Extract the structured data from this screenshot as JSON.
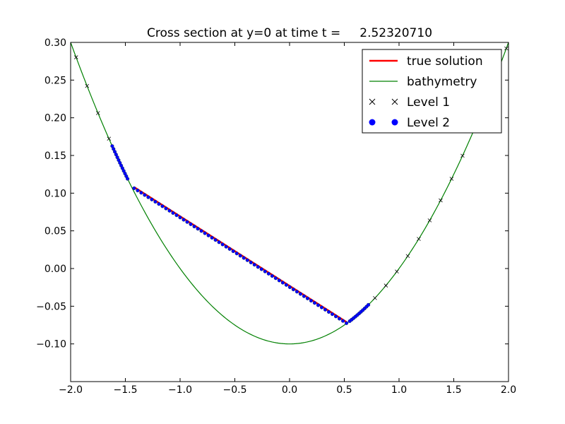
{
  "chart_data": {
    "type": "line",
    "title": "Cross section at y=0 at time t =     2.52320710",
    "xlabel": "",
    "ylabel": "",
    "xlim": [
      -2.0,
      2.0
    ],
    "ylim": [
      -0.15,
      0.3
    ],
    "x_ticks": [
      "−2.0",
      "−1.5",
      "−1.0",
      "−0.5",
      "0.0",
      "0.5",
      "1.0",
      "1.5",
      "2.0"
    ],
    "x_tick_values": [
      -2.0,
      -1.5,
      -1.0,
      -0.5,
      0.0,
      0.5,
      1.0,
      1.5,
      2.0
    ],
    "y_ticks": [
      "−0.10",
      "−0.05",
      "0.00",
      "0.05",
      "0.10",
      "0.15",
      "0.20",
      "0.25",
      "0.30"
    ],
    "y_tick_values": [
      -0.1,
      -0.05,
      0.0,
      0.05,
      0.1,
      0.15,
      0.2,
      0.25,
      0.3
    ],
    "grid": false,
    "legend_position": "top-right",
    "legend": [
      {
        "label": "true solution",
        "style": "thick-line",
        "color": "#ff0000"
      },
      {
        "label": "bathymetry",
        "style": "line",
        "color": "#008000"
      },
      {
        "label": "Level 1",
        "style": "x-marker",
        "color": "#000000"
      },
      {
        "label": "Level 2",
        "style": "dot-marker",
        "color": "#0000ff"
      }
    ],
    "series": [
      {
        "name": "true solution",
        "color": "#ff0000",
        "x": [
          -1.42,
          0.52
        ],
        "y": [
          0.108,
          -0.071
        ]
      },
      {
        "name": "bathymetry",
        "color": "#008000",
        "formula": "y = 0.1*x^2 - 0.1",
        "x_range": [
          -2.0,
          2.0
        ]
      },
      {
        "name": "Level 1",
        "color": "#000000",
        "x": [
          -1.95,
          -1.85,
          -1.75,
          -1.65,
          0.78,
          0.88,
          0.98,
          1.08,
          1.18,
          1.28,
          1.38,
          1.48,
          1.58,
          1.68,
          1.78,
          1.88,
          1.98
        ]
      },
      {
        "name": "Level 2",
        "color": "#0000ff",
        "x_range_left": [
          -1.62,
          -1.48
        ],
        "x_range_right": [
          0.55,
          0.72
        ],
        "x_range_free": [
          -1.42,
          0.52
        ]
      }
    ]
  }
}
